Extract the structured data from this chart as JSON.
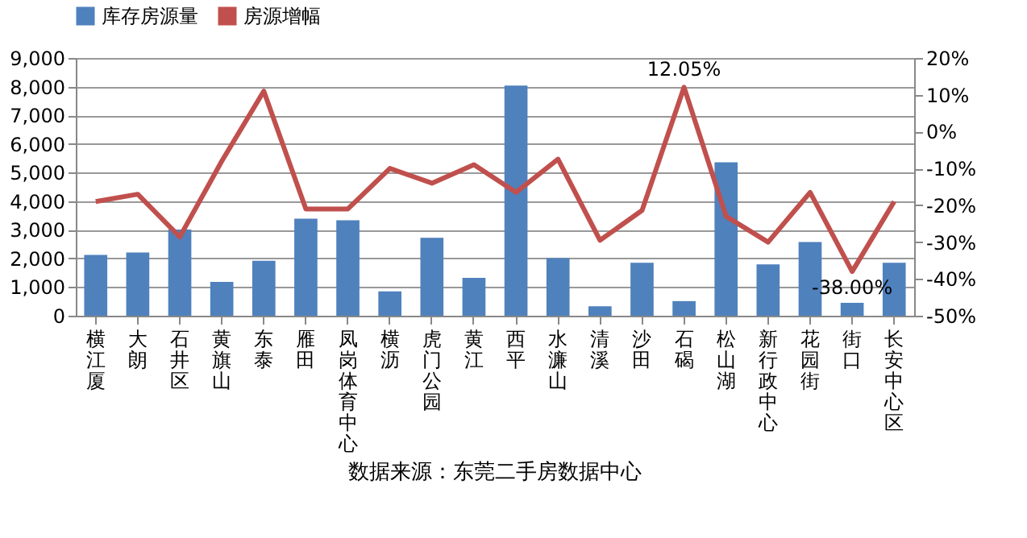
{
  "chart_data": {
    "type": "bar",
    "categories": [
      "横江厦",
      "大朗",
      "石井区",
      "黄旗山",
      "东泰",
      "雁田",
      "凤岗体育中心",
      "横沥",
      "虎门公园",
      "黄江",
      "西平",
      "水濂山",
      "清溪",
      "沙田",
      "石碣",
      "松山湖",
      "新行政中心",
      "花园街",
      "街口",
      "长安中心区"
    ],
    "series": [
      {
        "name": "库存房源量",
        "color": "#4f81bd",
        "values": [
          2120,
          2210,
          3010,
          1180,
          1920,
          3390,
          3330,
          850,
          2720,
          1320,
          8040,
          2010,
          330,
          1850,
          510,
          5360,
          1790,
          2570,
          450,
          1850
        ]
      },
      {
        "name": "房源增幅",
        "type": "line",
        "axis": "y2",
        "color": "#c0504d",
        "values": [
          -19,
          -17,
          -28.6,
          -8,
          11,
          -21,
          -21,
          -10,
          -14,
          -9,
          -16.5,
          -7.5,
          -29.5,
          -21.4,
          12.05,
          -23,
          -30,
          -16.5,
          -38,
          -19
        ],
        "value_labels": [
          null,
          null,
          null,
          null,
          null,
          null,
          null,
          null,
          null,
          null,
          null,
          null,
          null,
          null,
          "12.05%",
          null,
          null,
          null,
          "-38.00%",
          null
        ]
      }
    ],
    "ylim": [
      0,
      9000
    ],
    "yticks": [
      0,
      {
        "value": 1000,
        "label": "1,000"
      },
      {
        "value": 2000,
        "label": "2,000"
      },
      {
        "value": 3000,
        "label": "3,000"
      },
      {
        "value": 4000,
        "label": "4,000"
      },
      {
        "value": 5000,
        "label": "5,000"
      },
      {
        "value": 6000,
        "label": "6,000"
      },
      {
        "value": 7000,
        "label": "7,000"
      },
      {
        "value": 8000,
        "label": "8,000"
      },
      {
        "value": 9000,
        "label": "9,000"
      }
    ],
    "y2lim": [
      -50,
      20
    ],
    "y2ticks": [
      {
        "value": -50,
        "label": "-50%"
      },
      {
        "value": -40,
        "label": "-40%"
      },
      {
        "value": -30,
        "label": "-30%"
      },
      {
        "value": -20,
        "label": "-20%"
      },
      {
        "value": -10,
        "label": "-10%"
      },
      {
        "value": 0,
        "label": "0%"
      },
      {
        "value": 10,
        "label": "10%"
      },
      {
        "value": 20,
        "label": "20%"
      }
    ],
    "annotations": [
      "数据来源：东莞二手房数据中心"
    ],
    "grid": "y",
    "legend": "top",
    "marker": "none",
    "line_style": "solid"
  }
}
